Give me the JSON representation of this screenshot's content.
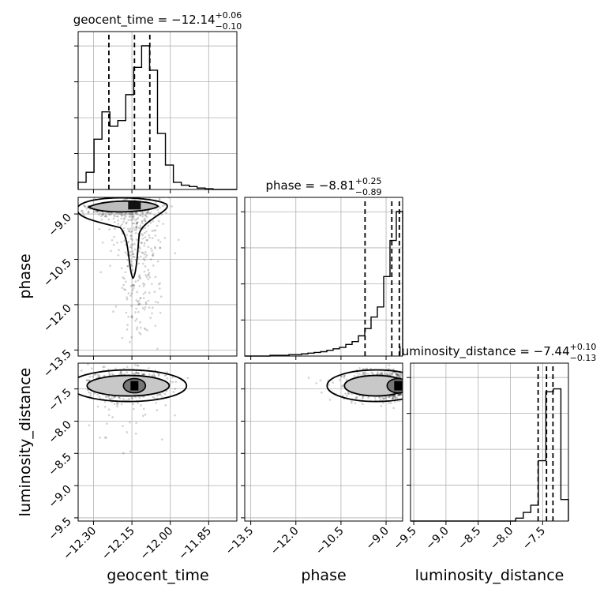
{
  "chart_data": {
    "type": "corner",
    "parameters": [
      "geocent_time",
      "phase",
      "luminosity_distance"
    ],
    "diagonal": [
      {
        "name": "geocent_time",
        "title_main": "geocent_time = −12.14",
        "title_sup": "+0.06",
        "title_sub": "−0.10",
        "quantiles": [
          -12.24,
          -12.14,
          -12.08
        ],
        "xlim": [
          -12.36,
          -11.74
        ],
        "bin_values": [
          0.05,
          0.12,
          0.35,
          0.54,
          0.44,
          0.48,
          0.66,
          0.85,
          1.0,
          0.83,
          0.39,
          0.17,
          0.05,
          0.03,
          0.02,
          0.01,
          0.005,
          0.0,
          0.0,
          0.0
        ],
        "xticks": [
          -12.3,
          -12.15,
          -12.0,
          -11.85
        ],
        "xtick_labels": [
          "−12.30",
          "−12.15",
          "−12.00",
          "−11.85"
        ],
        "xlabel": "geocent_time"
      },
      {
        "name": "phase",
        "title_main": "phase = −8.81",
        "title_sup": "+0.25",
        "title_sub": "−0.89",
        "quantiles": [
          -9.7,
          -8.81,
          -8.56
        ],
        "xlim": [
          -13.7,
          -8.45
        ],
        "bin_values": [
          0.0,
          0.0,
          0.0,
          0.0,
          0.005,
          0.005,
          0.005,
          0.01,
          0.01,
          0.015,
          0.02,
          0.025,
          0.03,
          0.04,
          0.05,
          0.06,
          0.08,
          0.1,
          0.14,
          0.19,
          0.27,
          0.34,
          0.55,
          0.8,
          1.0
        ],
        "xticks": [
          -13.5,
          -12.0,
          -10.5,
          -9.0
        ],
        "xtick_labels": [
          "−13.5",
          "−12.0",
          "−10.5",
          "−9.0"
        ],
        "xlabel": "phase"
      },
      {
        "name": "luminosity_distance",
        "title_main": "luminosity_distance = −7.44",
        "title_sup": "+0.10",
        "title_sub": "−0.13",
        "quantiles": [
          -7.57,
          -7.44,
          -7.34
        ],
        "xlim": [
          -9.55,
          -7.1
        ],
        "bin_values": [
          0.0,
          0.0,
          0.0,
          0.0,
          0.0,
          0.0,
          0.0,
          0.0,
          0.0,
          0.0,
          0.0,
          0.0,
          0.0,
          0.0,
          0.02,
          0.06,
          0.11,
          0.42,
          0.9,
          0.92,
          0.15
        ],
        "xticks": [
          -9.5,
          -9.0,
          -8.5,
          -8.0,
          -7.5
        ],
        "xtick_labels": [
          "−9.5",
          "−9.0",
          "−8.5",
          "−8.0",
          "−7.5"
        ],
        "xlabel": "luminosity_distance"
      }
    ],
    "y_axes": [
      {
        "name": "phase",
        "ylabel": "phase",
        "ylim": [
          -13.7,
          -8.45
        ],
        "yticks": [
          -9.0,
          -10.5,
          -12.0,
          -13.5
        ],
        "ytick_labels": [
          "−9.0",
          "−10.5",
          "−12.0",
          "−13.5"
        ]
      },
      {
        "name": "luminosity_distance",
        "ylabel": "luminosity_distance",
        "ylim": [
          -9.55,
          -7.1
        ],
        "yticks": [
          -7.5,
          -8.0,
          -8.5,
          -9.0,
          -9.5
        ],
        "ytick_labels": [
          "−7.5",
          "−8.0",
          "−8.5",
          "−9.0",
          "−9.5"
        ]
      }
    ],
    "scatter_density": [
      {
        "x_param": "geocent_time",
        "y_param": "phase",
        "peak": [
          -12.14,
          -8.72
        ],
        "contour_region": "upper band near phase −8.7 with a tail down to phase −10.8 at geocent_time ≈ −12.14"
      },
      {
        "x_param": "geocent_time",
        "y_param": "luminosity_distance",
        "peak": [
          -12.14,
          -7.45
        ],
        "contour_region": "band near luminosity_distance −7.45 from geocent_time −12.30 to −12.05"
      },
      {
        "x_param": "phase",
        "y_param": "luminosity_distance",
        "peak": [
          -8.6,
          -7.45
        ],
        "contour_region": "band near luminosity_distance −7.45 from phase −10.0 to −8.45"
      }
    ],
    "grid": true
  }
}
